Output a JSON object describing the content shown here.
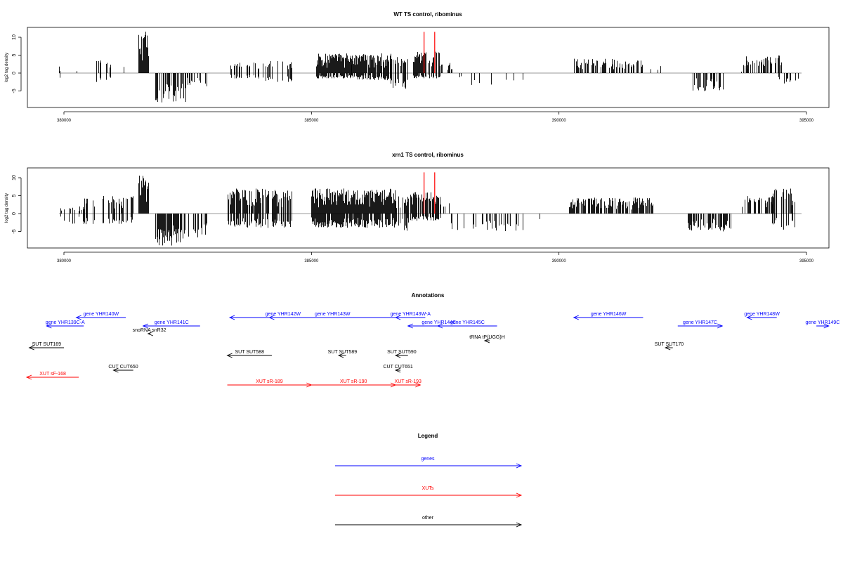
{
  "chart_data": [
    {
      "type": "bar",
      "title": "WT TS control, ribominus",
      "ylabel": "log2 tag density",
      "xlim": [
        379300,
        395450
      ],
      "ylim": [
        -9.5,
        13
      ],
      "yticks": [
        -5,
        0,
        5,
        10
      ],
      "yticklabels": [
        "-5",
        "0",
        "5",
        "10"
      ],
      "xticks": [
        380000,
        385000,
        390000,
        395000
      ],
      "xticklabels": [
        "380000",
        "385000",
        "390000",
        "395000"
      ],
      "grid": false,
      "marks": [
        {
          "name": "red marker 1",
          "x": 387275,
          "y": 11.5,
          "color": "#ff0000"
        },
        {
          "name": "red marker 2",
          "x": 387490,
          "y": 11.5,
          "color": "#ff0000"
        }
      ],
      "regions": [
        {
          "x": [
            379900,
            380000
          ],
          "pos": 2,
          "neg": -1.5,
          "density": 0.1
        },
        {
          "x": [
            380200,
            380300
          ],
          "pos": 1,
          "neg": 0,
          "density": 0.1
        },
        {
          "x": [
            380550,
            380950
          ],
          "pos": 3.5,
          "neg": -2.5,
          "density": 0.2
        },
        {
          "x": [
            381200,
            381400
          ],
          "pos": 2,
          "neg": 0,
          "density": 0.15
        },
        {
          "x": [
            381500,
            381700
          ],
          "pos": 12,
          "neg": 0,
          "density": 1
        },
        {
          "x": [
            381850,
            382450
          ],
          "pos": 0,
          "neg": -8.5,
          "density": 0.8
        },
        {
          "x": [
            382450,
            382900
          ],
          "pos": 0,
          "neg": -4,
          "density": 0.4
        },
        {
          "x": [
            383350,
            383950
          ],
          "pos": 3,
          "neg": -1.5,
          "density": 0.35
        },
        {
          "x": [
            384000,
            384600
          ],
          "pos": 3.5,
          "neg": -2.5,
          "density": 0.3
        },
        {
          "x": [
            385100,
            385800
          ],
          "pos": 5.5,
          "neg": -1.5,
          "density": 1
        },
        {
          "x": [
            385800,
            386600
          ],
          "pos": 5.5,
          "neg": -2,
          "density": 0.9
        },
        {
          "x": [
            386600,
            386950
          ],
          "pos": 4.5,
          "neg": -4.5,
          "density": 0.5
        },
        {
          "x": [
            387050,
            387600
          ],
          "pos": 6,
          "neg": -1.5,
          "density": 0.7
        },
        {
          "x": [
            387600,
            387850
          ],
          "pos": 3,
          "neg": 0,
          "density": 0.5
        },
        {
          "x": [
            387900,
            389300
          ],
          "pos": 0,
          "neg": -3.5,
          "density": 0.12
        },
        {
          "x": [
            389400,
            389700
          ],
          "pos": 0,
          "neg": -3,
          "density": 0.1
        },
        {
          "x": [
            390300,
            391700
          ],
          "pos": 4,
          "neg": 0,
          "density": 0.6
        },
        {
          "x": [
            391800,
            392200
          ],
          "pos": 2,
          "neg": 0,
          "density": 0.1
        },
        {
          "x": [
            392700,
            393350
          ],
          "pos": 0,
          "neg": -5,
          "density": 0.55
        },
        {
          "x": [
            393500,
            393800
          ],
          "pos": 1.5,
          "neg": 0,
          "density": 0.1
        },
        {
          "x": [
            393700,
            394500
          ],
          "pos": 5,
          "neg": 0,
          "density": 0.55
        },
        {
          "x": [
            394400,
            394850
          ],
          "pos": 0,
          "neg": -3,
          "density": 0.35
        }
      ]
    },
    {
      "type": "bar",
      "title": "xrn1 TS control, ribominus",
      "ylabel": "log2 tag density",
      "xlim": [
        379300,
        395450
      ],
      "ylim": [
        -9.5,
        13
      ],
      "yticks": [
        -5,
        0,
        5,
        10
      ],
      "yticklabels": [
        "-5",
        "0",
        "5",
        "10"
      ],
      "xticks": [
        380000,
        385000,
        390000,
        395000
      ],
      "xticklabels": [
        "380000",
        "385000",
        "390000",
        "395000"
      ],
      "grid": false,
      "marks": [
        {
          "name": "red marker 1",
          "x": 387275,
          "y": 11.5,
          "color": "#ff0000"
        },
        {
          "name": "red marker 2",
          "x": 387490,
          "y": 11.5,
          "color": "#ff0000"
        }
      ],
      "regions": [
        {
          "x": [
            379900,
            380400
          ],
          "pos": 2,
          "neg": -3,
          "density": 0.4
        },
        {
          "x": [
            380400,
            381400
          ],
          "pos": 5,
          "neg": -3,
          "density": 0.4
        },
        {
          "x": [
            381500,
            381700
          ],
          "pos": 11,
          "neg": 0,
          "density": 1
        },
        {
          "x": [
            381850,
            382400
          ],
          "pos": 0,
          "neg": -9,
          "density": 0.9
        },
        {
          "x": [
            382400,
            382900
          ],
          "pos": 0,
          "neg": -7,
          "density": 0.45
        },
        {
          "x": [
            383300,
            384600
          ],
          "pos": 7,
          "neg": -4,
          "density": 0.7
        },
        {
          "x": [
            385000,
            386700
          ],
          "pos": 7,
          "neg": -4,
          "density": 1
        },
        {
          "x": [
            386700,
            386950
          ],
          "pos": 5,
          "neg": -5,
          "density": 0.5
        },
        {
          "x": [
            387000,
            387600
          ],
          "pos": 6,
          "neg": -2,
          "density": 0.8
        },
        {
          "x": [
            387600,
            387800
          ],
          "pos": 3,
          "neg": 0,
          "density": 0.5
        },
        {
          "x": [
            387800,
            389300
          ],
          "pos": 0,
          "neg": -5,
          "density": 0.3
        },
        {
          "x": [
            389400,
            389700
          ],
          "pos": 0,
          "neg": -2,
          "density": 0.1
        },
        {
          "x": [
            390200,
            391900
          ],
          "pos": 4.5,
          "neg": 0,
          "density": 0.7
        },
        {
          "x": [
            392600,
            393500
          ],
          "pos": 0,
          "neg": -5,
          "density": 0.8
        },
        {
          "x": [
            393700,
            394300
          ],
          "pos": 5,
          "neg": 0,
          "density": 0.6
        },
        {
          "x": [
            394300,
            394800
          ],
          "pos": 7,
          "neg": -4.5,
          "density": 0.5
        }
      ]
    }
  ],
  "annotations": {
    "title": "Annotations",
    "items": [
      {
        "label": "gene YHR140W",
        "color": "#0000ff",
        "x1": 381250,
        "x2": 380250,
        "row": 0
      },
      {
        "label": "gene YHR139C-A",
        "color": "#0000ff",
        "x1": 380400,
        "x2": 379650,
        "row": 1
      },
      {
        "label": "gene YHR141C",
        "color": "#0000ff",
        "x1": 382750,
        "x2": 381600,
        "row": 1
      },
      {
        "label": "snoRNA snR32",
        "color": "#000000",
        "x1": 381750,
        "x2": 381700,
        "row": 2
      },
      {
        "label": "gene YHR142W",
        "color": "#0000ff",
        "x1": 385500,
        "x2": 383350,
        "row": 0
      },
      {
        "label": "gene YHR143W",
        "color": "#0000ff",
        "x1": 386700,
        "x2": 384150,
        "row": 0
      },
      {
        "label": "gene YHR143W-A",
        "color": "#0000ff",
        "x1": 387300,
        "x2": 386700,
        "row": 0
      },
      {
        "label": "gene YHR144C",
        "color": "#0000ff",
        "x1": 388200,
        "x2": 386950,
        "row": 1
      },
      {
        "label": "gene YHR145C",
        "color": "#0000ff",
        "x1": 388750,
        "x2": 387550,
        "row": 1
      },
      {
        "label": "gene YHR146W",
        "color": "#0000ff",
        "x1": 391700,
        "x2": 390300,
        "row": 0
      },
      {
        "label": "gene YHR147C",
        "color": "#0000ff",
        "x1": 392400,
        "x2": 393300,
        "row": 1
      },
      {
        "label": "gene YHR148W",
        "color": "#0000ff",
        "x1": 394400,
        "x2": 393800,
        "row": 0
      },
      {
        "label": "gene YHR149C",
        "color": "#0000ff",
        "x1": 395200,
        "x2": 395450,
        "row": 1
      },
      {
        "label": "tRNA tP(UGG)H",
        "color": "#000000",
        "x1": 388600,
        "x2": 388500,
        "row": 3
      },
      {
        "label": "SUT SUT169",
        "color": "#000000",
        "x1": 380000,
        "x2": 379300,
        "row": 4
      },
      {
        "label": "SUT SUT588",
        "color": "#000000",
        "x1": 384200,
        "x2": 383300,
        "row": 5
      },
      {
        "label": "SUT SUT589",
        "color": "#000000",
        "x1": 385700,
        "x2": 385550,
        "row": 5
      },
      {
        "label": "SUT SUT590",
        "color": "#000000",
        "x1": 386950,
        "x2": 386700,
        "row": 5
      },
      {
        "label": "SUT SUT170",
        "color": "#000000",
        "x1": 392300,
        "x2": 392150,
        "row": 4
      },
      {
        "label": "CUT CUT650",
        "color": "#000000",
        "x1": 381400,
        "x2": 381000,
        "row": 6
      },
      {
        "label": "CUT CUT651",
        "color": "#000000",
        "x1": 386800,
        "x2": 386700,
        "row": 6
      },
      {
        "label": "XUT sF-168",
        "color": "#ff0000",
        "x1": 380300,
        "x2": 378900,
        "row": 7
      },
      {
        "label": "XUT sR-189",
        "color": "#ff0000",
        "x1": 383300,
        "x2": 385000,
        "row": 8
      },
      {
        "label": "XUT sR-190",
        "color": "#ff0000",
        "x1": 385000,
        "x2": 386700,
        "row": 8
      },
      {
        "label": "XUT sR-193",
        "color": "#ff0000",
        "x1": 386700,
        "x2": 387200,
        "row": 8
      }
    ]
  },
  "legend": {
    "title": "Legend",
    "entries": [
      {
        "label": "genes",
        "color": "#0000ff"
      },
      {
        "label": "XUTs",
        "color": "#ff0000"
      },
      {
        "label": "other",
        "color": "#000000"
      }
    ]
  }
}
